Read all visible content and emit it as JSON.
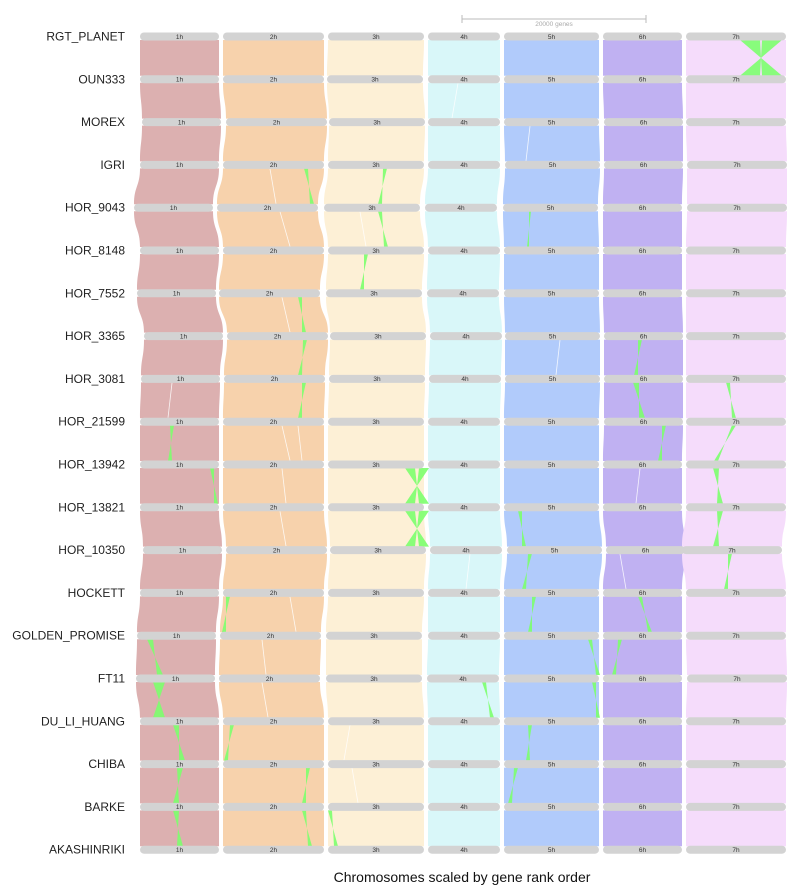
{
  "chart_data": {
    "type": "riparian",
    "xlabel": "Chromosomes scaled by gene rank order",
    "scale_bar": {
      "label": "20000 genes"
    },
    "chromosome_names": [
      "1h",
      "2h",
      "3h",
      "4h",
      "5h",
      "6h",
      "7h"
    ],
    "chromosome_colors": [
      "#dcb0b0",
      "#f7d2ac",
      "#fdf0d6",
      "#d9f7f9",
      "#b1cbfb",
      "#c0b1f2",
      "#f5dcfb"
    ],
    "inversion_color": "#7cff6e",
    "genomes": [
      "RGT_PLANET",
      "OUN333",
      "MOREX",
      "IGRI",
      "HOR_9043",
      "HOR_8148",
      "HOR_7552",
      "HOR_3365",
      "HOR_3081",
      "HOR_21599",
      "HOR_13942",
      "HOR_13821",
      "HOR_10350",
      "HOCKETT",
      "GOLDEN_PROMISE",
      "FT11",
      "DU_LI_HUANG",
      "CHIBA",
      "BARKE",
      "AKASHINRIKI"
    ]
  }
}
